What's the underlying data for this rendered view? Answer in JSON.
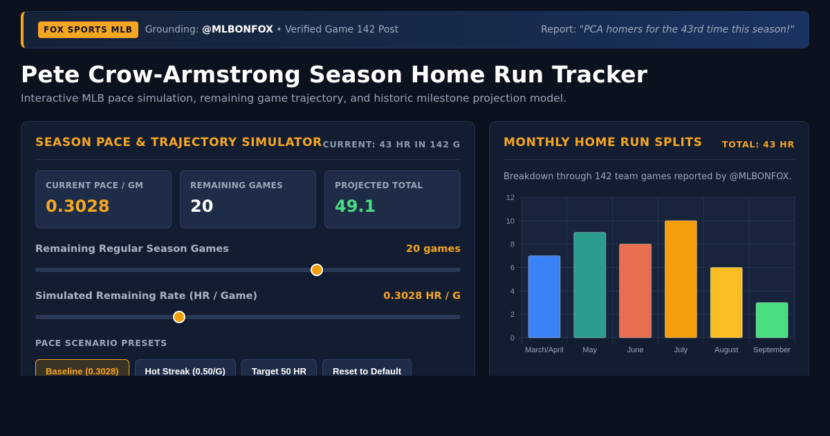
{
  "banner": {
    "badge": "FOX SPORTS MLB",
    "grounding_prefix": "Grounding: ",
    "grounding_handle": "@MLBONFOX",
    "grounding_suffix": " • Verified Game 142 Post",
    "report_prefix": "Report: ",
    "report_quote": "\"PCA homers for the 43rd time this season!\"",
    "accent_color": "#f5a623"
  },
  "page": {
    "title": "Pete Crow-Armstrong Season Home Run Tracker",
    "subtitle": "Interactive MLB pace simulation, remaining game trajectory, and historic milestone projection model."
  },
  "simulator": {
    "title": "Season Pace & Trajectory Simulator",
    "meta": "CURRENT: 43 HR IN 142 G",
    "stats": [
      {
        "label": "CURRENT PACE / GM",
        "value": "0.3028",
        "color": "#f5a623"
      },
      {
        "label": "REMAINING GAMES",
        "value": "20",
        "color": "#ffffff"
      },
      {
        "label": "PROJECTED TOTAL",
        "value": "49.1",
        "color": "#4ade80"
      }
    ],
    "games_slider": {
      "label": "Remaining Regular Season Games",
      "value_text": "20 games",
      "fill_fraction": 0.662
    },
    "rate_slider": {
      "label": "Simulated Remaining Rate (HR / Game)",
      "value_text": "0.3028 HR / G",
      "fill_fraction": 0.338
    },
    "presets_label": "PACE SCENARIO PRESETS",
    "presets": [
      {
        "label": "Baseline (0.3028)",
        "active": true
      },
      {
        "label": "Hot Streak (0.50/G)",
        "active": false
      },
      {
        "label": "Target 50 HR",
        "active": false
      },
      {
        "label": "Reset to Default",
        "active": false
      }
    ]
  },
  "splits": {
    "title": "Monthly Home Run Splits",
    "meta": "TOTAL: 43 HR",
    "caption": "Breakdown through 142 team games reported by @MLBONFOX."
  },
  "chart_data": {
    "type": "bar",
    "categories": [
      "March/April",
      "May",
      "June",
      "July",
      "August",
      "September"
    ],
    "values": [
      7,
      9,
      8,
      10,
      6,
      3
    ],
    "colors": [
      "#3b82f6",
      "#2a9d8f",
      "#e76f51",
      "#f59e0b",
      "#fbbf24",
      "#4ade80"
    ],
    "ylim": [
      0,
      12
    ],
    "yticks": [
      0,
      2,
      4,
      6,
      8,
      10,
      12
    ],
    "grid": true,
    "title": "",
    "xlabel": "",
    "ylabel": ""
  }
}
